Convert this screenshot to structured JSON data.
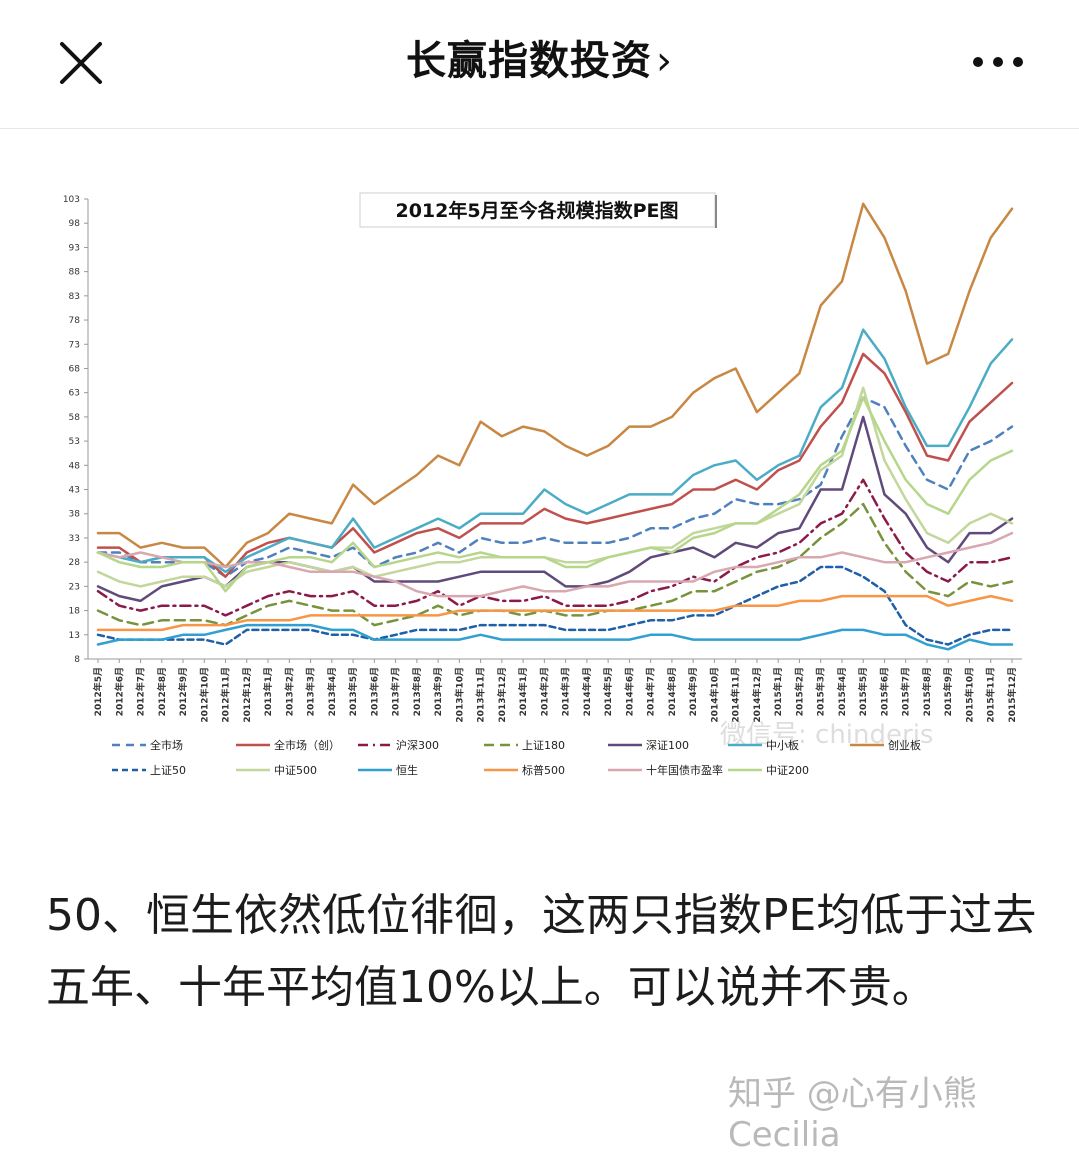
{
  "header": {
    "title": "长赢指数投资",
    "chevron": "›",
    "close_icon": "close-icon",
    "more_icon": "more-dots-icon"
  },
  "article": {
    "paragraph": "50、恒生依然低位徘徊，这两只指数PE均低于过去五年、十年平均值10%以上。可以说并不贵。",
    "watermark": "知乎 @心有小熊Cecilia"
  },
  "chart_data": {
    "type": "line",
    "title": "2012年5月至今各规模指数PE图",
    "watermark_text": "微信号: chinderis",
    "ylim": [
      8,
      103
    ],
    "yticks": [
      8,
      13,
      18,
      23,
      28,
      33,
      38,
      43,
      48,
      53,
      58,
      63,
      68,
      73,
      78,
      83,
      88,
      93,
      98,
      103
    ],
    "categories": [
      "2012年5月",
      "2012年6月",
      "2012年7月",
      "2012年8月",
      "2012年9月",
      "2012年10月",
      "2012年11月",
      "2012年12月",
      "2013年1月",
      "2013年2月",
      "2013年3月",
      "2013年4月",
      "2013年5月",
      "2013年6月",
      "2013年7月",
      "2013年8月",
      "2013年9月",
      "2013年10月",
      "2013年11月",
      "2013年12月",
      "2014年1月",
      "2014年2月",
      "2014年3月",
      "2014年4月",
      "2014年5月",
      "2014年6月",
      "2014年7月",
      "2014年8月",
      "2014年9月",
      "2014年10月",
      "2014年11月",
      "2014年12月",
      "2015年1月",
      "2015年2月",
      "2015年3月",
      "2015年4月",
      "2015年5月",
      "2015年6月",
      "2015年7月",
      "2015年8月",
      "2015年9月",
      "2015年10月",
      "2015年11月",
      "2015年12月"
    ],
    "series": [
      {
        "name": "全市场",
        "color": "#4f81bd",
        "dash": "8,6",
        "width": 2.5,
        "values": [
          30,
          30,
          28,
          28,
          28,
          28,
          25,
          28,
          29,
          31,
          30,
          29,
          31,
          27,
          29,
          30,
          32,
          30,
          33,
          32,
          32,
          33,
          32,
          32,
          32,
          33,
          35,
          35,
          37,
          38,
          41,
          40,
          40,
          41,
          44,
          54,
          62,
          60,
          52,
          45,
          43,
          51,
          53,
          56
        ]
      },
      {
        "name": "全市场（创）",
        "color": "#c0504d",
        "dash": "",
        "width": 2.5,
        "values": [
          31,
          31,
          28,
          29,
          29,
          29,
          25,
          30,
          32,
          33,
          32,
          31,
          35,
          30,
          32,
          34,
          35,
          33,
          36,
          36,
          36,
          39,
          37,
          36,
          37,
          38,
          39,
          40,
          43,
          43,
          45,
          43,
          47,
          49,
          56,
          61,
          71,
          67,
          59,
          50,
          49,
          57,
          61,
          65
        ]
      },
      {
        "name": "沪深300",
        "color": "#8b1a4a",
        "dash": "10,5,2,5",
        "width": 2.5,
        "values": [
          22,
          19,
          18,
          19,
          19,
          19,
          17,
          19,
          21,
          22,
          21,
          21,
          22,
          19,
          19,
          20,
          22,
          19,
          21,
          20,
          20,
          21,
          19,
          19,
          19,
          20,
          22,
          23,
          25,
          24,
          27,
          29,
          30,
          32,
          36,
          38,
          45,
          37,
          30,
          26,
          24,
          28,
          28,
          29
        ]
      },
      {
        "name": "上证180",
        "color": "#77933c",
        "dash": "10,6",
        "width": 2.5,
        "values": [
          18,
          16,
          15,
          16,
          16,
          16,
          15,
          17,
          19,
          20,
          19,
          18,
          18,
          15,
          16,
          17,
          19,
          17,
          18,
          18,
          17,
          18,
          17,
          17,
          18,
          18,
          19,
          20,
          22,
          22,
          24,
          26,
          27,
          29,
          33,
          36,
          40,
          32,
          26,
          22,
          21,
          24,
          23,
          24
        ]
      },
      {
        "name": "深证100",
        "color": "#604a7b",
        "dash": "",
        "width": 2.5,
        "values": [
          23,
          21,
          20,
          23,
          24,
          25,
          23,
          27,
          28,
          28,
          27,
          26,
          27,
          24,
          24,
          24,
          24,
          25,
          26,
          26,
          26,
          26,
          23,
          23,
          24,
          26,
          29,
          30,
          31,
          29,
          32,
          31,
          34,
          35,
          43,
          43,
          58,
          42,
          38,
          31,
          28,
          34,
          34,
          37
        ]
      },
      {
        "name": "中小板",
        "color": "#4bacc6",
        "dash": "",
        "width": 2.5,
        "values": [
          30,
          29,
          28,
          29,
          29,
          29,
          26,
          29,
          31,
          33,
          32,
          31,
          37,
          31,
          33,
          35,
          37,
          35,
          38,
          38,
          38,
          43,
          40,
          38,
          40,
          42,
          42,
          42,
          46,
          48,
          49,
          45,
          48,
          50,
          60,
          64,
          76,
          70,
          60,
          52,
          52,
          60,
          69,
          74
        ]
      },
      {
        "name": "创业板",
        "color": "#c88843",
        "dash": "",
        "width": 2.5,
        "values": [
          34,
          34,
          31,
          32,
          31,
          31,
          27,
          32,
          34,
          38,
          37,
          36,
          44,
          40,
          43,
          46,
          50,
          48,
          57,
          54,
          56,
          55,
          52,
          50,
          52,
          56,
          56,
          58,
          63,
          66,
          68,
          59,
          63,
          67,
          81,
          86,
          102,
          95,
          84,
          69,
          71,
          84,
          95,
          101
        ]
      },
      {
        "name": "上证50",
        "color": "#1f5fa8",
        "dash": "6,4",
        "width": 2.5,
        "values": [
          13,
          12,
          12,
          12,
          12,
          12,
          11,
          14,
          14,
          14,
          14,
          13,
          13,
          12,
          13,
          14,
          14,
          14,
          15,
          15,
          15,
          15,
          14,
          14,
          14,
          15,
          16,
          16,
          17,
          17,
          19,
          21,
          23,
          24,
          27,
          27,
          25,
          22,
          15,
          12,
          11,
          13,
          14,
          14
        ]
      },
      {
        "name": "中证500",
        "color": "#c3d69b",
        "dash": "",
        "width": 2.5,
        "values": [
          26,
          24,
          23,
          24,
          25,
          25,
          23,
          26,
          27,
          28,
          27,
          26,
          27,
          25,
          26,
          27,
          28,
          28,
          29,
          29,
          29,
          29,
          28,
          28,
          29,
          30,
          31,
          31,
          34,
          35,
          36,
          36,
          38,
          40,
          47,
          50,
          64,
          49,
          41,
          34,
          32,
          36,
          38,
          36
        ]
      },
      {
        "name": "恒生",
        "color": "#31a0d0",
        "dash": "",
        "width": 2.5,
        "values": [
          11,
          12,
          12,
          12,
          13,
          13,
          14,
          15,
          15,
          15,
          15,
          14,
          14,
          12,
          12,
          12,
          12,
          12,
          13,
          12,
          12,
          12,
          12,
          12,
          12,
          12,
          13,
          13,
          12,
          12,
          12,
          12,
          12,
          12,
          13,
          14,
          14,
          13,
          13,
          11,
          10,
          12,
          11,
          11
        ]
      },
      {
        "name": "标普500",
        "color": "#f79646",
        "dash": "",
        "width": 2.5,
        "values": [
          14,
          14,
          14,
          14,
          15,
          15,
          15,
          16,
          16,
          16,
          17,
          17,
          17,
          17,
          17,
          17,
          17,
          18,
          18,
          18,
          18,
          18,
          18,
          18,
          18,
          18,
          18,
          18,
          18,
          18,
          19,
          19,
          19,
          20,
          20,
          21,
          21,
          21,
          21,
          21,
          19,
          20,
          21,
          20
        ]
      },
      {
        "name": "十年国债市盈率",
        "color": "#d9a7b0",
        "dash": "",
        "width": 2.5,
        "values": [
          30,
          29,
          30,
          29,
          28,
          28,
          27,
          28,
          28,
          27,
          26,
          26,
          26,
          25,
          24,
          22,
          21,
          21,
          21,
          22,
          23,
          22,
          22,
          23,
          23,
          24,
          24,
          24,
          24,
          26,
          27,
          27,
          28,
          29,
          29,
          30,
          29,
          28,
          28,
          29,
          30,
          31,
          32,
          34
        ]
      },
      {
        "name": "中证200",
        "color": "#b6d68a",
        "dash": "",
        "width": 2.5,
        "values": [
          30,
          28,
          27,
          27,
          28,
          28,
          22,
          27,
          28,
          29,
          29,
          28,
          32,
          27,
          28,
          29,
          30,
          29,
          30,
          29,
          29,
          29,
          27,
          27,
          29,
          30,
          31,
          30,
          33,
          34,
          36,
          36,
          39,
          42,
          48,
          51,
          62,
          53,
          45,
          40,
          38,
          45,
          49,
          51
        ]
      }
    ]
  }
}
